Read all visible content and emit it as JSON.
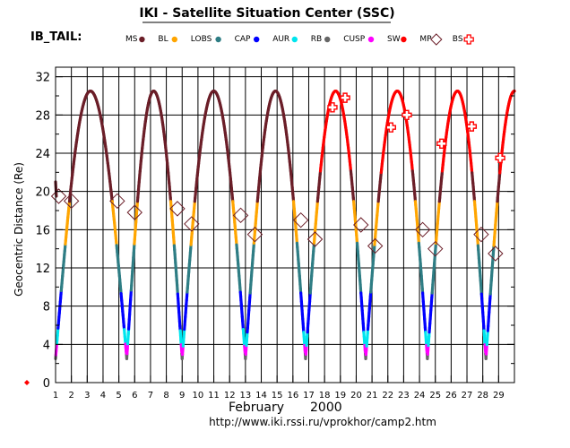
{
  "chart_data": {
    "type": "line",
    "title": "IKI - Satellite Situation Center (SSC)",
    "subtitle": "IB_TAIL:",
    "ylabel": "Geocentric Distance (Re)",
    "xlabel_month": "February",
    "xlabel_year": "2000",
    "url": "http://www.iki.rssi.ru/vprokhor/camp2.htm",
    "ylim": [
      0,
      33
    ],
    "xlim": [
      1,
      30
    ],
    "y_ticks": [
      0,
      4,
      8,
      12,
      16,
      20,
      24,
      28,
      32
    ],
    "y_tick_labels": [
      "0",
      "4",
      "8",
      "12",
      "16",
      "20",
      "24",
      "28",
      "32"
    ],
    "x_ticks": [
      1,
      2,
      3,
      4,
      5,
      6,
      7,
      8,
      9,
      10,
      11,
      12,
      13,
      14,
      15,
      16,
      17,
      18,
      19,
      20,
      21,
      22,
      23,
      24,
      25,
      26,
      27,
      28,
      29
    ],
    "x_tick_labels": [
      "1",
      "2",
      "3",
      "4",
      "5",
      "6",
      "7",
      "8",
      "9",
      "10",
      "11",
      "12",
      "13",
      "14",
      "15",
      "16",
      "17",
      "18",
      "19",
      "20",
      "21",
      "22",
      "23",
      "24",
      "25",
      "26",
      "27",
      "28",
      "29"
    ],
    "legend": [
      {
        "name": "MS",
        "color": "#6b1e28",
        "marker": "dot"
      },
      {
        "name": "BL",
        "color": "#ffa500",
        "marker": "dot"
      },
      {
        "name": "LOBS",
        "color": "#2e7d84",
        "marker": "dot"
      },
      {
        "name": "CAP",
        "color": "#0000ff",
        "marker": "dot"
      },
      {
        "name": "AUR",
        "color": "#00e5ee",
        "marker": "dot"
      },
      {
        "name": "RB",
        "color": "#666666",
        "marker": "dot"
      },
      {
        "name": "CUSP",
        "color": "#ff00ff",
        "marker": "dot"
      },
      {
        "name": "SW",
        "color": "#ff0000",
        "marker": "dot"
      },
      {
        "name": "MP",
        "color": "#6b1e28",
        "marker": "diamond"
      },
      {
        "name": "BS",
        "color": "#ff0000",
        "marker": "cross"
      }
    ],
    "orbit": {
      "apogee_re": 30.5,
      "perigee_re": 2.5,
      "perigee_days": [
        1.0,
        5.5,
        9.0,
        13.0,
        16.8,
        20.6,
        24.5,
        28.2
      ],
      "apogee_days": [
        3.2,
        7.2,
        11.0,
        14.9,
        18.7,
        22.6,
        26.4,
        30.0
      ],
      "sw_apogee_days": [
        18.7,
        22.6,
        26.4,
        30.0
      ]
    },
    "mp_crossings": [
      {
        "x": 1.2,
        "y": 19.5
      },
      {
        "x": 2.0,
        "y": 19.0
      },
      {
        "x": 4.9,
        "y": 19.0
      },
      {
        "x": 6.0,
        "y": 17.8
      },
      {
        "x": 8.7,
        "y": 18.2
      },
      {
        "x": 9.6,
        "y": 16.6
      },
      {
        "x": 12.7,
        "y": 17.5
      },
      {
        "x": 13.6,
        "y": 15.5
      },
      {
        "x": 16.5,
        "y": 17.0
      },
      {
        "x": 17.4,
        "y": 15.0
      },
      {
        "x": 20.3,
        "y": 16.5
      },
      {
        "x": 21.2,
        "y": 14.3
      },
      {
        "x": 24.2,
        "y": 16.0
      },
      {
        "x": 25.0,
        "y": 14.0
      },
      {
        "x": 27.9,
        "y": 15.5
      },
      {
        "x": 28.8,
        "y": 13.5
      }
    ],
    "bs_crossings": [
      {
        "x": 18.5,
        "y": 28.8
      },
      {
        "x": 19.3,
        "y": 29.8
      },
      {
        "x": 22.2,
        "y": 26.7
      },
      {
        "x": 23.2,
        "y": 28.0
      },
      {
        "x": 25.4,
        "y": 25.0
      },
      {
        "x": 27.3,
        "y": 26.8
      },
      {
        "x": 29.1,
        "y": 23.5
      }
    ]
  }
}
